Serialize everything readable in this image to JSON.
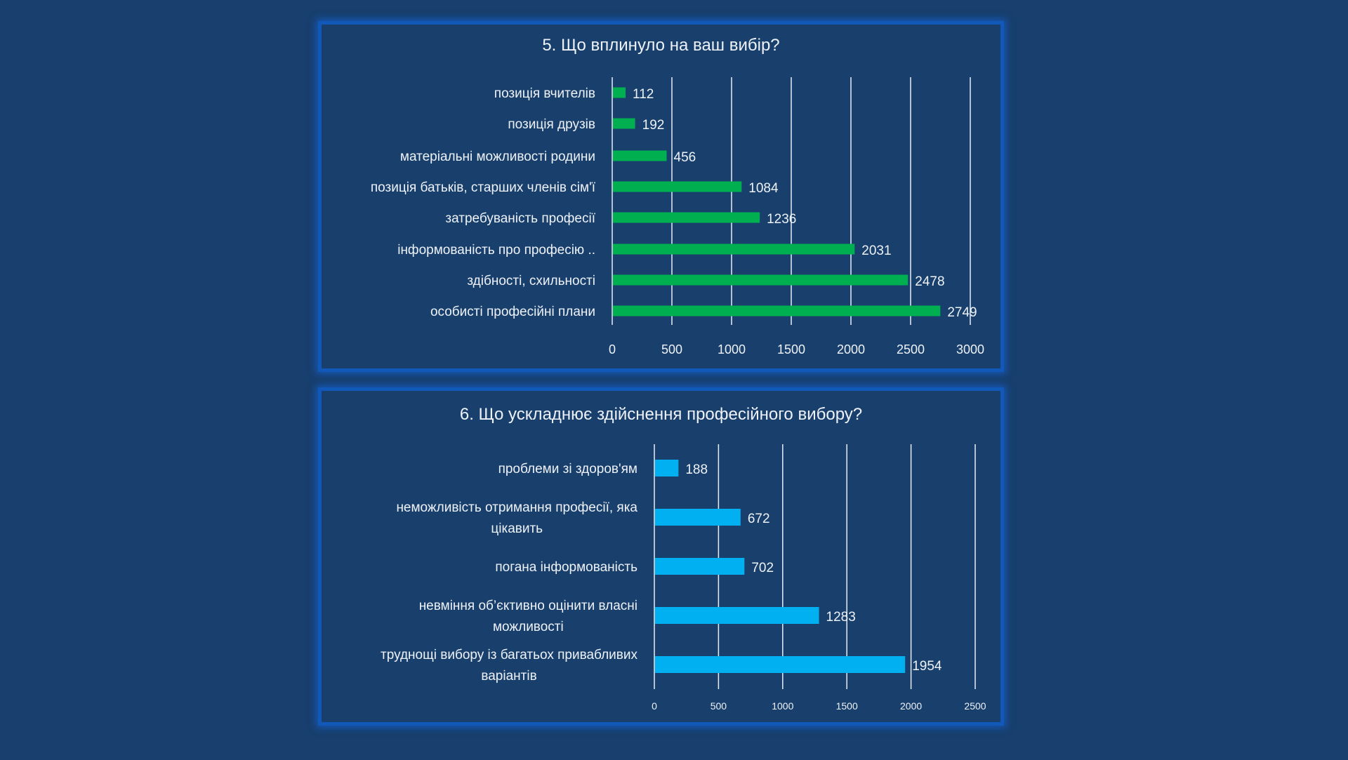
{
  "chart_data": [
    {
      "type": "bar",
      "orientation": "horizontal",
      "title": "5. Що вплинуло на ваш вибір?",
      "categories": [
        "позиція вчителів",
        "позиція друзів",
        "матеріальні можливості родини",
        "позиція батьків, старших членів сім'ї",
        "затребуваність професії",
        "інформованість про професію ..",
        "здібності, схильності",
        "особисті професійні плани"
      ],
      "values": [
        112,
        192,
        456,
        1084,
        1236,
        2031,
        2478,
        2749
      ],
      "value_labels": [
        "112",
        "192",
        "456",
        "1084",
        "1236",
        "2031",
        "2478",
        "2749"
      ],
      "xlim": [
        0,
        3000
      ],
      "xticks": [
        "0",
        "500",
        "1000",
        "1500",
        "2000",
        "2500",
        "3000"
      ],
      "xtick_values": [
        0,
        500,
        1000,
        1500,
        2000,
        2500,
        3000
      ],
      "grid": true,
      "legend": "none",
      "bar_color": "#00b050"
    },
    {
      "type": "bar",
      "orientation": "horizontal",
      "title": "6. Що ускладнює здійснення професійного вибору?",
      "categories": [
        [
          "проблеми зі здоров'ям"
        ],
        [
          "неможливість отримання професії, яка",
          "цікавить"
        ],
        [
          "погана інформованість"
        ],
        [
          "невміння об’єктивно оцінити власні",
          "можливості"
        ],
        [
          "труднощі вибору із багатьох привабливих",
          "варіантів"
        ]
      ],
      "values": [
        188,
        672,
        702,
        1283,
        1954
      ],
      "value_labels": [
        "188",
        "672",
        "702",
        "1283",
        "1954"
      ],
      "xlim": [
        0,
        2500
      ],
      "xticks": [
        "0",
        "500",
        "1000",
        "1500",
        "2000",
        "2500"
      ],
      "xtick_values": [
        0,
        500,
        1000,
        1500,
        2000,
        2500
      ],
      "grid": true,
      "legend": "none",
      "bar_color": "#00b0f0"
    }
  ]
}
